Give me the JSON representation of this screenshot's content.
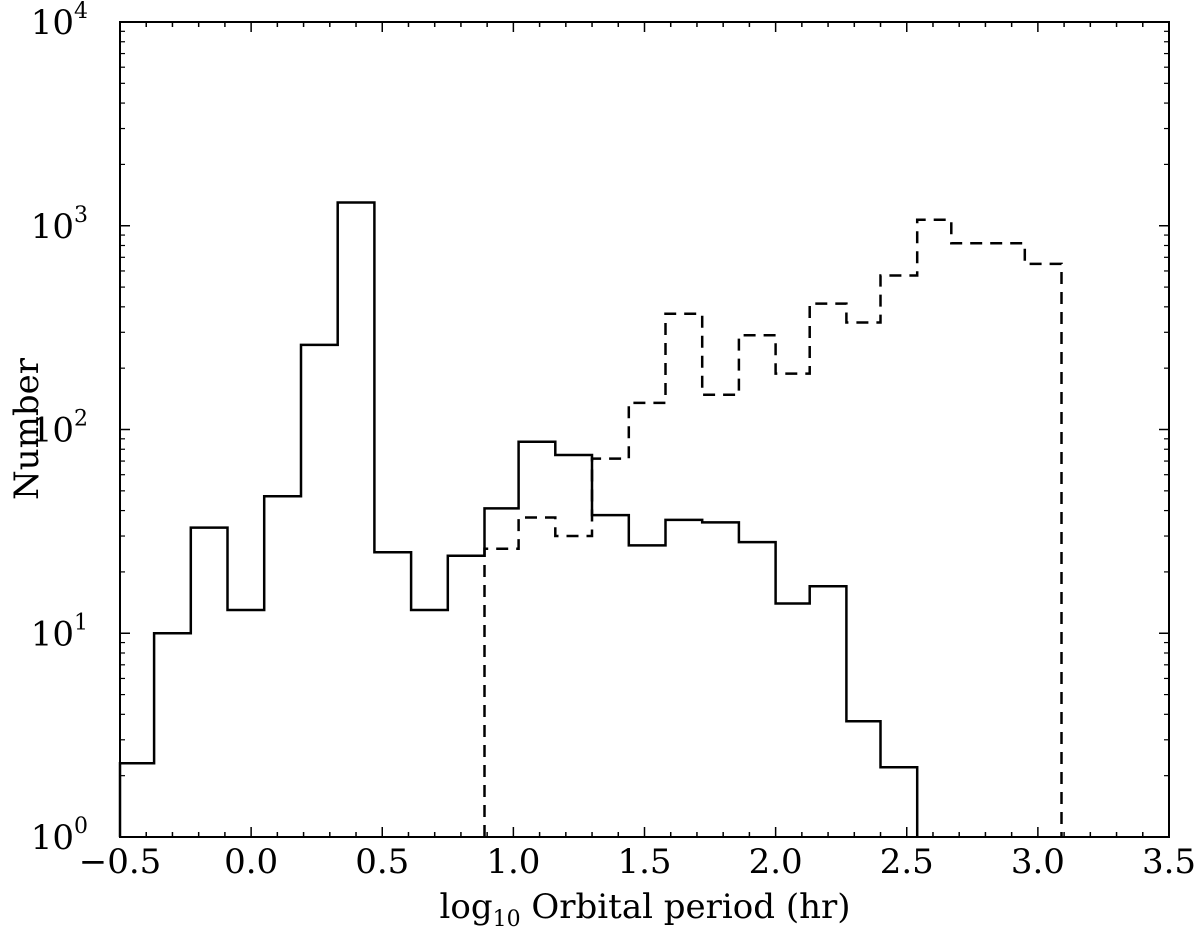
{
  "chart_data": {
    "type": "histogram",
    "xlabel": {
      "prefix": "log",
      "subscript": "10",
      "text": " Orbital period (hr)"
    },
    "ylabel": "Number",
    "xlim": [
      -0.5,
      3.5
    ],
    "ylim": [
      1,
      10000
    ],
    "yscale": "log",
    "x_ticks": [
      "−0.5",
      "0.0",
      "0.5",
      "1.0",
      "1.5",
      "2.0",
      "2.5",
      "3.0",
      "3.5"
    ],
    "x_tick_values": [
      -0.5,
      0.0,
      0.5,
      1.0,
      1.5,
      2.0,
      2.5,
      3.0,
      3.5
    ],
    "y_ticks": [
      {
        "base": "10",
        "exp": "0",
        "value": 1
      },
      {
        "base": "10",
        "exp": "1",
        "value": 10
      },
      {
        "base": "10",
        "exp": "2",
        "value": 100
      },
      {
        "base": "10",
        "exp": "3",
        "value": 1000
      },
      {
        "base": "10",
        "exp": "4",
        "value": 10000
      }
    ],
    "grid": false,
    "series": [
      {
        "style": "solid",
        "color": "#000000",
        "bin_edges": [
          -0.5,
          -0.37,
          -0.23,
          -0.09,
          0.05,
          0.19,
          0.33,
          0.47,
          0.61,
          0.75,
          0.89,
          1.02,
          1.16,
          1.3,
          1.44,
          1.58,
          1.72,
          1.86,
          2.0,
          2.13,
          2.27,
          2.4,
          2.54
        ],
        "counts": [
          2.3,
          10,
          33,
          13,
          47,
          260,
          1300,
          25,
          13,
          24,
          41,
          87,
          75,
          38,
          27,
          36,
          35,
          28,
          14,
          17,
          3.7,
          2.2
        ]
      },
      {
        "style": "dashed",
        "color": "#000000",
        "bin_edges": [
          0.89,
          1.02,
          1.16,
          1.3,
          1.44,
          1.58,
          1.72,
          1.86,
          2.0,
          2.13,
          2.27,
          2.4,
          2.54,
          2.67,
          2.81,
          2.95,
          3.09
        ],
        "counts": [
          26,
          37,
          30,
          72,
          135,
          370,
          148,
          290,
          188,
          415,
          335,
          570,
          1070,
          820,
          820,
          650
        ]
      }
    ]
  }
}
